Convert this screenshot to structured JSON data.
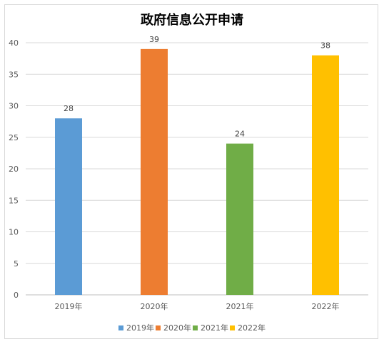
{
  "chart_data": {
    "type": "bar",
    "title": "政府信息公开申请",
    "categories": [
      "2019年",
      "2020年",
      "2021年",
      "2022年"
    ],
    "values": [
      28,
      39,
      24,
      38
    ],
    "colors": [
      "#5b9bd5",
      "#ed7d31",
      "#70ad47",
      "#ffc000"
    ],
    "ylim": [
      0,
      40
    ],
    "yticks": [
      0,
      5,
      10,
      15,
      20,
      25,
      30,
      35,
      40
    ],
    "grid": true,
    "legend": "bottom",
    "legend_entries": [
      "2019年",
      "2020年",
      "2021年",
      "2022年"
    ]
  }
}
